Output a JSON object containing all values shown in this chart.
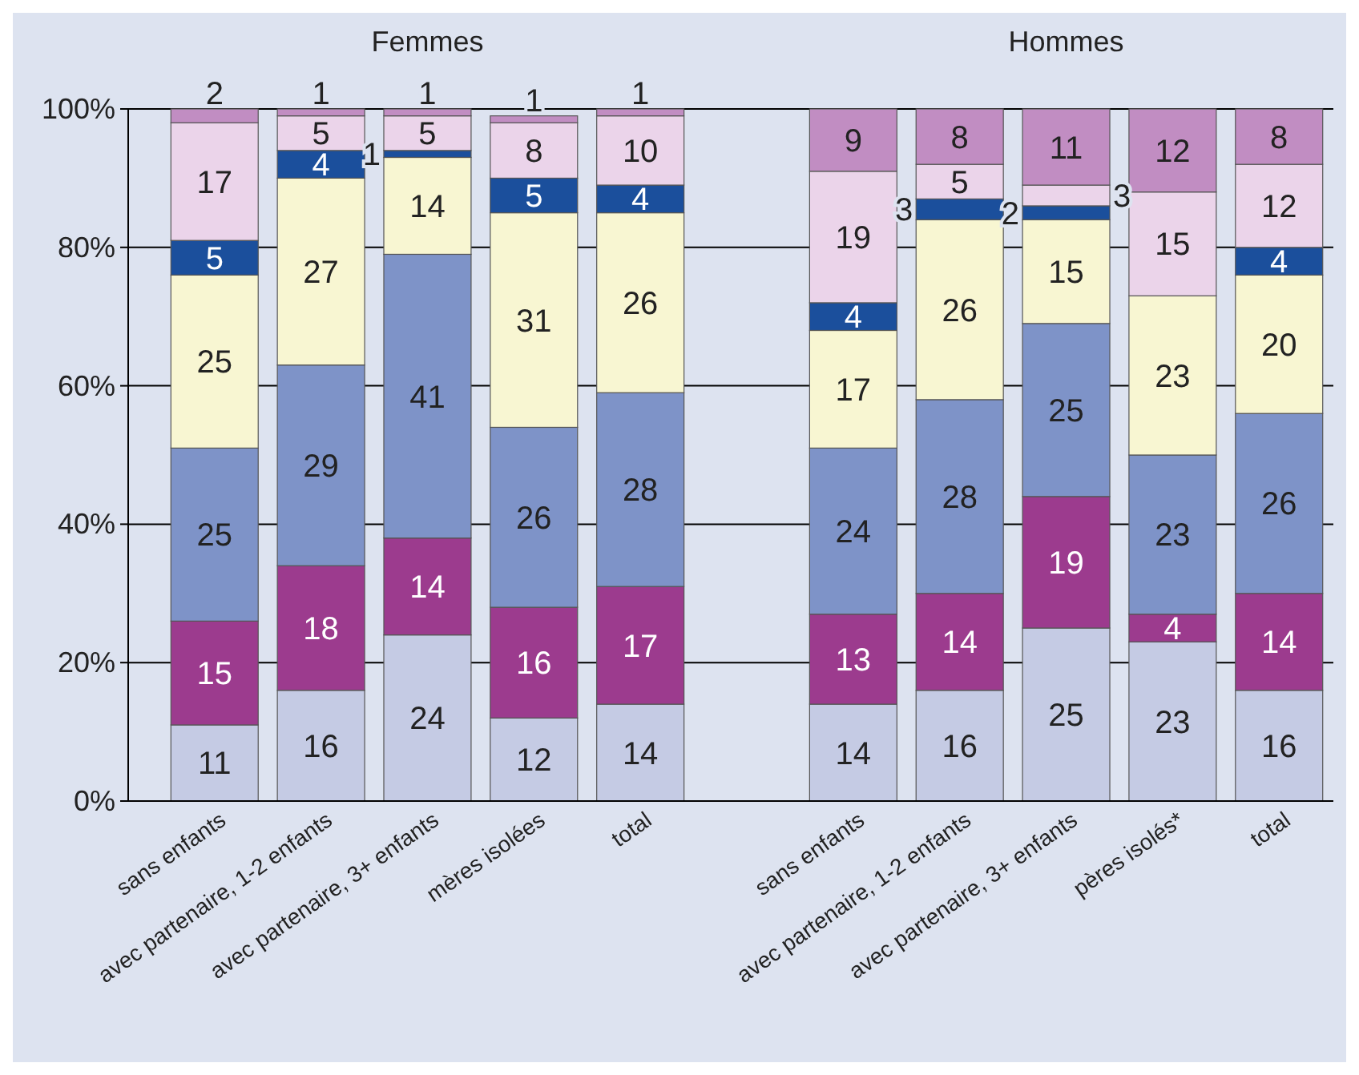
{
  "chart_data": {
    "type": "bar",
    "stacked": true,
    "data_labels": true,
    "grid": "y",
    "categories": [
      "sans enfants",
      "avec partenaire, 1-2 enfants",
      "avec partenaire, 3+ enfants",
      "mères isolées",
      "total",
      null,
      "sans enfants",
      "avec partenaire, 1-2 enfants",
      "avec partenaire, 3+ enfants",
      "pères isolés*",
      "total"
    ],
    "series": [
      {
        "color": "#c5cbe4",
        "values": [
          11,
          16,
          24,
          12,
          14,
          null,
          14,
          16,
          25,
          23,
          16
        ]
      },
      {
        "color": "#9c3b8e",
        "values": [
          15,
          18,
          14,
          16,
          17,
          null,
          13,
          14,
          19,
          4,
          14
        ]
      },
      {
        "color": "#7e93c8",
        "values": [
          25,
          29,
          41,
          26,
          28,
          null,
          24,
          28,
          25,
          23,
          26
        ]
      },
      {
        "color": "#f8f6d2",
        "values": [
          25,
          27,
          14,
          31,
          26,
          null,
          17,
          26,
          15,
          23,
          20
        ]
      },
      {
        "color": "#1b4f9c",
        "values": [
          5,
          4,
          1,
          5,
          4,
          null,
          4,
          3,
          2,
          null,
          4
        ]
      },
      {
        "color": "#ebd4ea",
        "values": [
          17,
          5,
          5,
          8,
          10,
          null,
          19,
          5,
          3,
          15,
          12
        ]
      },
      {
        "color": "#c18dc2",
        "values": [
          2,
          1,
          1,
          1,
          1,
          null,
          9,
          8,
          11,
          12,
          8
        ]
      }
    ],
    "ylim": [
      0,
      100
    ],
    "yticks": [
      {
        "value": 0,
        "label": "0%"
      },
      {
        "value": 20,
        "label": "20%"
      },
      {
        "value": 40,
        "label": "40%"
      },
      {
        "value": 60,
        "label": "60%"
      },
      {
        "value": 80,
        "label": "80%"
      },
      {
        "value": 100,
        "label": "100%"
      }
    ],
    "annotations": [
      "Femmes",
      "Hommes"
    ]
  }
}
